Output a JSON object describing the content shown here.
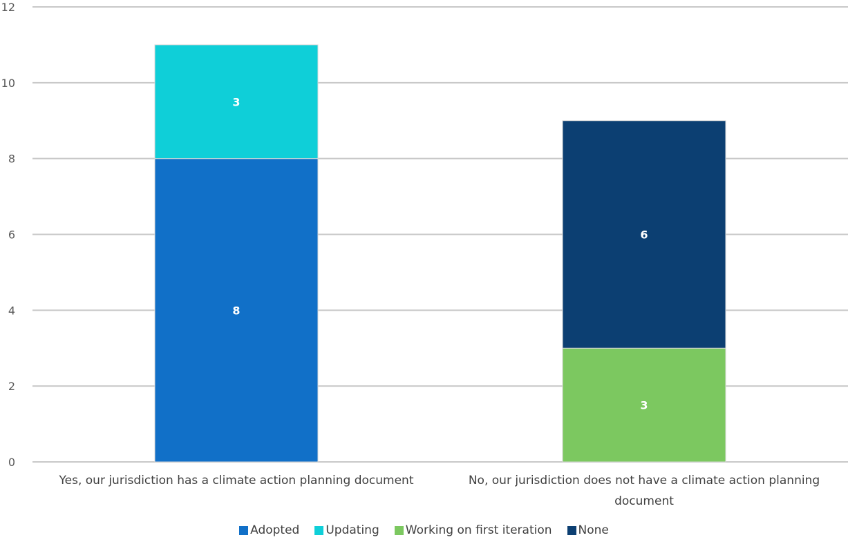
{
  "chart_data": {
    "type": "bar",
    "stacked": true,
    "categories": [
      [
        "Yes, our jurisdiction has a climate action planning document"
      ],
      [
        "No, our jurisdiction does not have a climate action planning",
        "document"
      ]
    ],
    "series": [
      {
        "name": "Adopted",
        "color": "#1170C8",
        "values": [
          8,
          0
        ]
      },
      {
        "name": "Updating",
        "color": "#0FCFD8",
        "values": [
          3,
          0
        ]
      },
      {
        "name": "Working on first iteration",
        "color": "#7CC860",
        "values": [
          0,
          3
        ]
      },
      {
        "name": "None",
        "color": "#0C3F72",
        "values": [
          0,
          6
        ]
      }
    ],
    "ylim": [
      0,
      12
    ],
    "yticks": [
      0,
      2,
      4,
      6,
      8,
      10,
      12
    ],
    "grid": true,
    "legend": "bottom"
  }
}
